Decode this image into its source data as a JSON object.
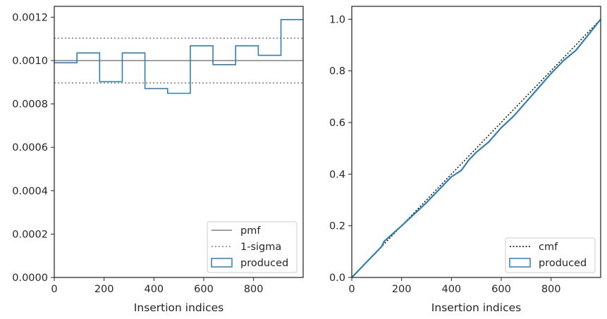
{
  "colors": {
    "produced": "#2e7fb5",
    "pmf": "#808080",
    "sigma": "#808080",
    "cmf": "#000000",
    "axes": "#262626"
  },
  "chart_data": [
    {
      "type": "histogram-step",
      "xlabel": "Insertion indices",
      "xlim": [
        0,
        999
      ],
      "ylim": [
        0,
        0.00125
      ],
      "xticks": [
        0,
        200,
        400,
        600,
        800
      ],
      "xtick_labels": [
        "0",
        "200",
        "400",
        "600",
        "800"
      ],
      "yticks": [
        0,
        0.0002,
        0.0004,
        0.0006,
        0.0008,
        0.001,
        0.0012
      ],
      "ytick_labels": [
        "0.0000",
        "0.0002",
        "0.0004",
        "0.0006",
        "0.0008",
        "0.0010",
        "0.0012"
      ],
      "grid": false,
      "legend_position": "lower-right",
      "legend": [
        {
          "label": "pmf",
          "style": "solid-line"
        },
        {
          "label": "1-sigma",
          "style": "dotted-line"
        },
        {
          "label": "produced",
          "style": "box"
        }
      ],
      "pmf": 0.001,
      "sigma_band": [
        0.000897,
        0.001103
      ],
      "bin_edges": [
        0,
        91,
        182,
        273,
        364,
        455,
        546,
        637,
        728,
        819,
        910,
        999
      ],
      "produced": [
        0.00099,
        0.001035,
        0.000903,
        0.001035,
        0.000871,
        0.000849,
        0.001068,
        0.000981,
        0.001068,
        0.001024,
        0.001189
      ]
    },
    {
      "type": "line",
      "xlabel": "Insertion indices",
      "xlim": [
        0,
        999
      ],
      "ylim": [
        0,
        1.05
      ],
      "xticks": [
        0,
        200,
        400,
        600,
        800
      ],
      "xtick_labels": [
        "0",
        "200",
        "400",
        "600",
        "800"
      ],
      "yticks": [
        0,
        0.2,
        0.4,
        0.6,
        0.8,
        1.0
      ],
      "ytick_labels": [
        "0.0",
        "0.2",
        "0.4",
        "0.6",
        "0.8",
        "1.0"
      ],
      "grid": false,
      "legend_position": "lower-right",
      "legend": [
        {
          "label": "cmf",
          "style": "dotted-line"
        },
        {
          "label": "produced",
          "style": "box"
        }
      ],
      "cmf": {
        "x": [
          0,
          999
        ],
        "y": [
          0,
          1.0
        ]
      },
      "produced": {
        "x": [
          0,
          50,
          100,
          120,
          130,
          200,
          250,
          300,
          350,
          400,
          440,
          470,
          500,
          550,
          600,
          650,
          700,
          750,
          800,
          850,
          900,
          950,
          999
        ],
        "y": [
          0,
          0.05,
          0.1,
          0.12,
          0.14,
          0.2,
          0.245,
          0.29,
          0.34,
          0.39,
          0.415,
          0.455,
          0.485,
          0.525,
          0.58,
          0.625,
          0.68,
          0.735,
          0.79,
          0.84,
          0.88,
          0.94,
          1.0
        ]
      }
    }
  ]
}
